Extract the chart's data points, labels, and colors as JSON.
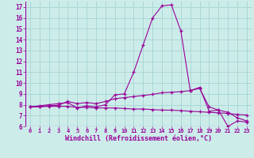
{
  "title": "",
  "xlabel": "Windchill (Refroidissement éolien,°C)",
  "bg_color": "#ccecea",
  "grid_color": "#aad8d4",
  "line_color": "#990099",
  "x": [
    0,
    1,
    2,
    3,
    4,
    5,
    6,
    7,
    8,
    9,
    10,
    11,
    12,
    13,
    14,
    15,
    16,
    17,
    18,
    19,
    20,
    21,
    22,
    23
  ],
  "ylim": [
    6.0,
    17.5
  ],
  "yticks": [
    6,
    7,
    8,
    9,
    10,
    11,
    12,
    13,
    14,
    15,
    16,
    17
  ],
  "line1": [
    7.8,
    7.9,
    8.0,
    8.1,
    8.2,
    7.7,
    7.9,
    7.8,
    8.0,
    8.9,
    9.0,
    11.0,
    13.5,
    16.0,
    17.1,
    17.2,
    14.8,
    9.3,
    9.6,
    7.4,
    7.5,
    6.0,
    6.5,
    6.4
  ],
  "line2": [
    7.8,
    7.85,
    7.9,
    7.95,
    8.3,
    8.1,
    8.2,
    8.1,
    8.3,
    8.55,
    8.65,
    8.75,
    8.85,
    8.95,
    9.1,
    9.15,
    9.2,
    9.3,
    9.5,
    7.8,
    7.5,
    7.3,
    6.8,
    6.5
  ],
  "line3": [
    7.8,
    7.8,
    7.85,
    7.85,
    7.85,
    7.75,
    7.75,
    7.7,
    7.7,
    7.7,
    7.65,
    7.6,
    7.6,
    7.55,
    7.5,
    7.5,
    7.45,
    7.4,
    7.35,
    7.3,
    7.25,
    7.2,
    7.1,
    7.05
  ]
}
